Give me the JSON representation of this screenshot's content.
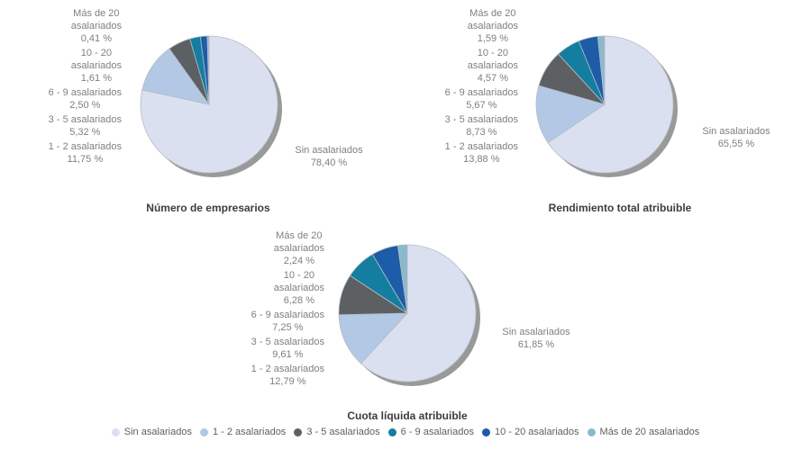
{
  "page": {
    "background": "#ffffff"
  },
  "colors": {
    "slice_palette": [
      "#dbe0f1",
      "#b2c8e4",
      "#5d6063",
      "#137ea0",
      "#1d5ca8",
      "#8cb8cc"
    ],
    "shadow": "#999999",
    "slice_border": "#b7bcc4",
    "label_text": "#7f7f7f",
    "title_text": "#3d3d3d",
    "legend_text": "#5f5f5f"
  },
  "categories": [
    "Sin asalariados",
    "1 - 2 asalariados",
    "3 - 5 asalariados",
    "6 - 9 asalariados",
    "10 - 20 asalariados",
    "Más de 20 asalariados"
  ],
  "category_lines": [
    [
      "Sin asalariados"
    ],
    [
      "1 - 2 asalariados"
    ],
    [
      "3 - 5 asalariados"
    ],
    [
      "6 - 9 asalariados"
    ],
    [
      "10 - 20",
      "asalariados"
    ],
    [
      "Más de 20",
      "asalariados"
    ]
  ],
  "legend": {
    "position": "bottom",
    "items": [
      {
        "label": "Sin asalariados",
        "color": "#dbe0f1"
      },
      {
        "label": "1 - 2 asalariados",
        "color": "#b2c8e4"
      },
      {
        "label": "3 - 5 asalariados",
        "color": "#5d6063"
      },
      {
        "label": "6 - 9 asalariados",
        "color": "#137ea0"
      },
      {
        "label": "10 - 20 asalariados",
        "color": "#1d5ca8"
      },
      {
        "label": "Más de 20 asalariados",
        "color": "#8cb8cc"
      }
    ]
  },
  "chart_data": [
    {
      "type": "pie",
      "title": "Número de empresarios",
      "categories": [
        "Sin asalariados",
        "1 - 2 asalariados",
        "3 - 5 asalariados",
        "6 - 9 asalariados",
        "10 - 20 asalariados",
        "Más de 20 asalariados"
      ],
      "values": [
        78.4,
        11.75,
        5.32,
        2.5,
        1.61,
        0.41
      ],
      "value_labels": [
        "78,40 %",
        "11,75 %",
        "5,32 %",
        "2,50 %",
        "1,61 %",
        "0,41 %"
      ],
      "start_angle": "top",
      "direction": "clockwise"
    },
    {
      "type": "pie",
      "title": "Rendimiento total atribuible",
      "categories": [
        "Sin asalariados",
        "1 - 2 asalariados",
        "3 - 5 asalariados",
        "6 - 9 asalariados",
        "10 - 20 asalariados",
        "Más de 20 asalariados"
      ],
      "values": [
        65.55,
        13.88,
        8.73,
        5.67,
        4.57,
        1.59
      ],
      "value_labels": [
        "65,55 %",
        "13,88 %",
        "8,73 %",
        "5,67 %",
        "4,57 %",
        "1,59 %"
      ],
      "start_angle": "top",
      "direction": "clockwise"
    },
    {
      "type": "pie",
      "title": "Cuota líquida atribuible",
      "categories": [
        "Sin asalariados",
        "1 - 2 asalariados",
        "3 - 5 asalariados",
        "6 - 9 asalariados",
        "10 - 20 asalariados",
        "Más de 20 asalariados"
      ],
      "values": [
        61.85,
        12.79,
        9.61,
        7.25,
        6.28,
        2.24
      ],
      "value_labels": [
        "61,85 %",
        "12,79 %",
        "9,61 %",
        "7,25 %",
        "6,28 %",
        "2,24 %"
      ],
      "start_angle": "top",
      "direction": "clockwise"
    }
  ]
}
